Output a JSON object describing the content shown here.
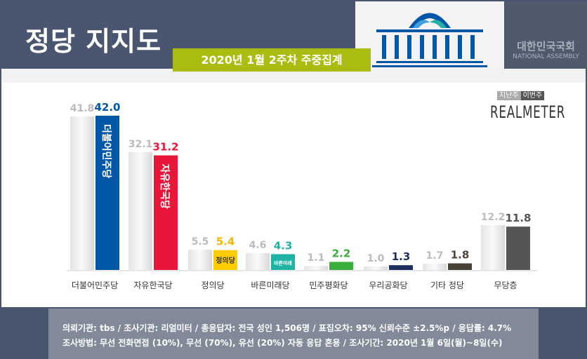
{
  "header": {
    "title": "정당 지지도",
    "subtitle": "2020년 1월 2주차 주중집계",
    "assembly_kr": "대한민국국회",
    "assembly_en": "NATIONAL ASSEMBLY"
  },
  "legend": {
    "prev": "지난주",
    "curr": "이번주",
    "brand": "REALMETER"
  },
  "chart_data": {
    "type": "bar",
    "categories": [
      "더불어민주당",
      "자유한국당",
      "정의당",
      "바른미래당",
      "민주평화당",
      "우리공화당",
      "기타 정당",
      "무당층"
    ],
    "series": [
      {
        "name": "지난주",
        "values": [
          41.8,
          32.1,
          5.5,
          4.6,
          1.1,
          1.0,
          1.7,
          12.2
        ]
      },
      {
        "name": "이번주",
        "values": [
          42.0,
          31.2,
          5.4,
          4.3,
          2.2,
          1.3,
          1.8,
          11.8
        ]
      }
    ],
    "colors": [
      "#0057a8",
      "#e8173a",
      "#ffcc00",
      "#1fb3a6",
      "#3aae3a",
      "#1c2f5c",
      "#4a4236",
      "#555555"
    ],
    "bar_logos": [
      "더불어민주당",
      "자유한국당",
      "정의당",
      "바른미래",
      "",
      "",
      "",
      ""
    ],
    "ylim": [
      0,
      45
    ]
  },
  "footer": {
    "line1": "의뢰기관: tbs / 조사기관: 리얼미터 / 총응답자: 전국 성인 1,506명 / 표집오차: 95% 신뢰수준 ±2.5%p / 응답률: 4.7%",
    "line2": "조사방법: 무선 전화면접 (10%), 무선 (70%), 유선 (20%) 자동 응답 혼용 / 조사기간: 2020년 1월 6일(월)~8일(수)"
  }
}
